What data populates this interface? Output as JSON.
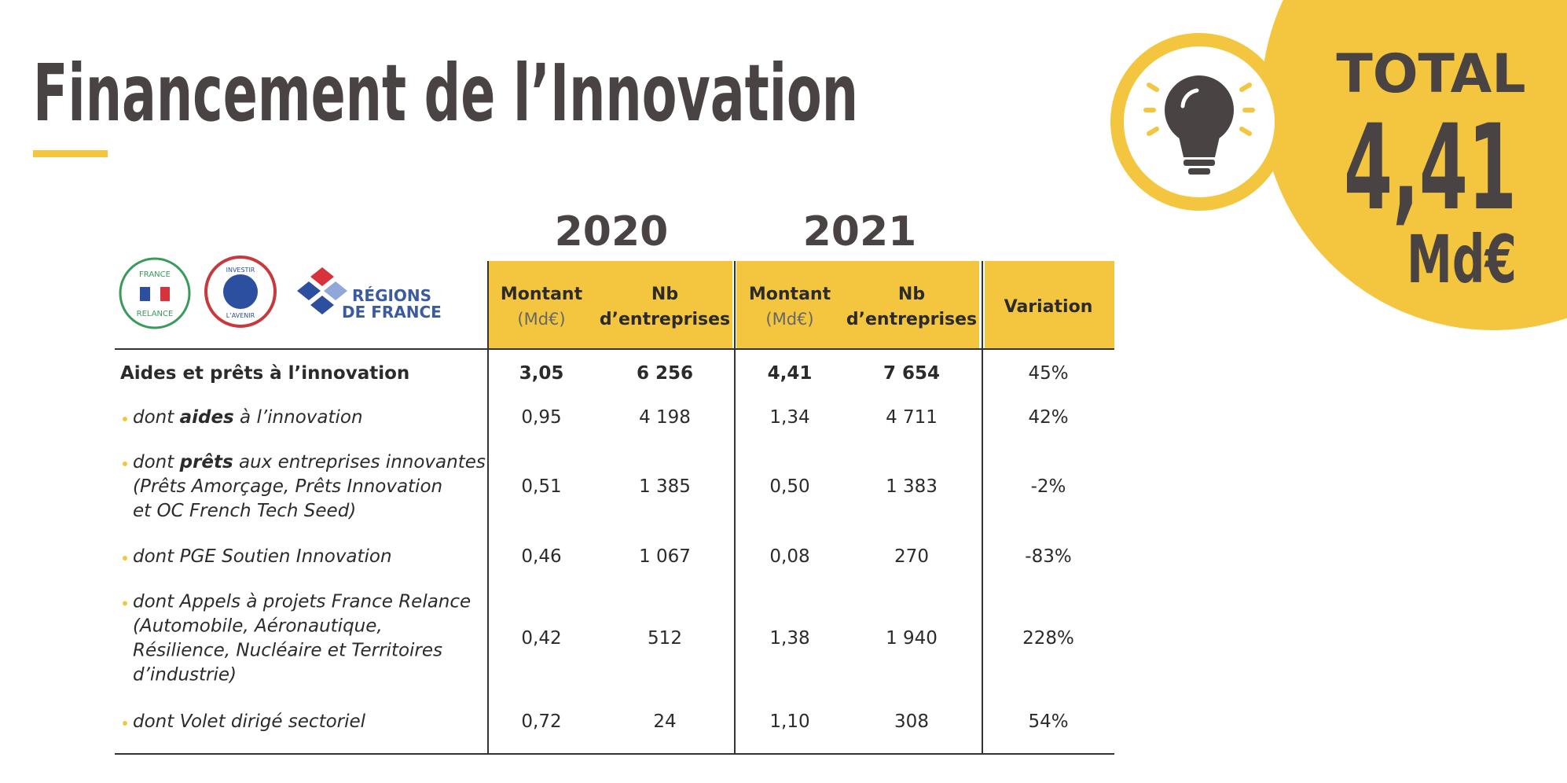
{
  "title": "Financement de l’Innovation",
  "total": {
    "label": "TOTAL",
    "value": "4,41",
    "unit": "Md€"
  },
  "logos": {
    "france_relance": [
      "FRANCE",
      "RELANCE"
    ],
    "investir": [
      "INVESTIR",
      "L’AVENIR"
    ],
    "regions": [
      "RÉGIONS",
      "DE FRANCE"
    ]
  },
  "table": {
    "years": [
      "2020",
      "2021"
    ],
    "headers": [
      {
        "title": "Montant",
        "unit": "(Md€)"
      },
      {
        "title": "Nb",
        "subtitle": "d’entreprises"
      },
      {
        "title": "Montant",
        "unit": "(Md€)"
      },
      {
        "title": "Nb",
        "subtitle": "d’entreprises"
      },
      {
        "title": "Variation"
      }
    ],
    "rows": [
      {
        "label": [
          "Aides et prêts à l’innovation"
        ],
        "cells": [
          "3,05",
          "6 256",
          "4,41",
          "7 654",
          "45%"
        ]
      },
      {
        "label": [
          [
            "dont ",
            "aides",
            " à l’innovation"
          ]
        ],
        "cells": [
          "0,95",
          "4 198",
          "1,34",
          "4 711",
          "42%"
        ]
      },
      {
        "label": [
          [
            "dont ",
            "prêts",
            " aux entreprises innovantes"
          ],
          "(Prêts Amorçage, Prêts Innovation",
          "et OC French Tech Seed)"
        ],
        "cells": [
          "0,51",
          "1 385",
          "0,50",
          "1 383",
          "-2%"
        ]
      },
      {
        "label": [
          "dont PGE Soutien Innovation"
        ],
        "cells": [
          "0,46",
          "1 067",
          "0,08",
          "270",
          "-83%"
        ]
      },
      {
        "label": [
          "dont Appels à projets France Relance",
          "(Automobile, Aéronautique,",
          "Résilience, Nucléaire et Territoires",
          "d’industrie)"
        ],
        "cells": [
          "0,42",
          "512",
          "1,38",
          "1 940",
          "228%"
        ]
      },
      {
        "label": [
          "dont Volet dirigé sectoriel"
        ],
        "cells": [
          "0,72",
          "24",
          "1,10",
          "308",
          "54%"
        ]
      }
    ]
  }
}
